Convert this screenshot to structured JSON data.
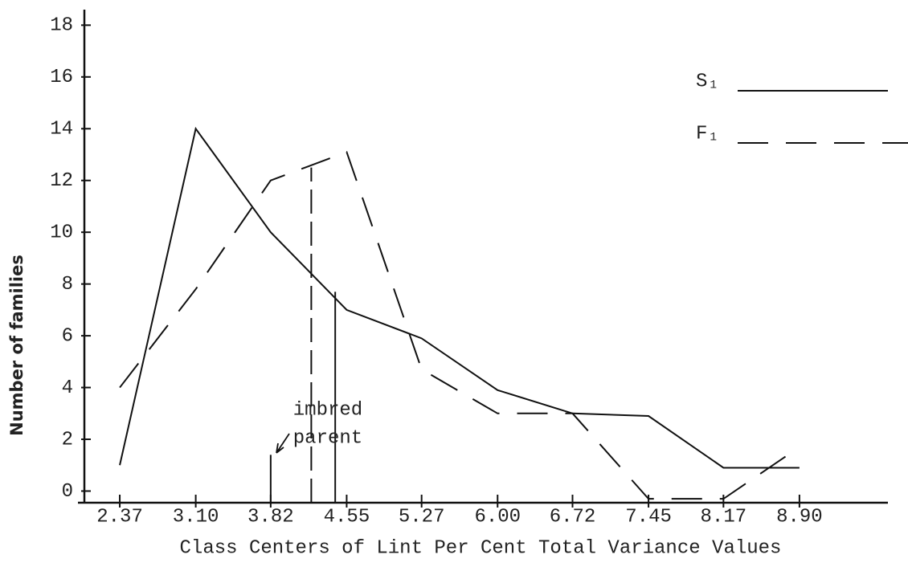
{
  "chart_data": {
    "type": "line",
    "x_label": "Class Centers of Lint Per Cent Total Variance Values",
    "y_label": "Number of families",
    "x": [
      2.37,
      3.1,
      3.82,
      4.55,
      5.27,
      6.0,
      6.72,
      7.45,
      8.17,
      8.9
    ],
    "series": [
      {
        "name": "S₁",
        "color": "#111111",
        "dash": "solid",
        "values": [
          1,
          14,
          10,
          7,
          5.9,
          3.9,
          3,
          2.9,
          0.9,
          0.9
        ]
      },
      {
        "name": "F₁",
        "color": "#111111",
        "dash": "dashed",
        "values": [
          4,
          7.8,
          12,
          13.1,
          4.7,
          3,
          3,
          -0.3,
          -0.3,
          1.7
        ]
      }
    ],
    "parent_lines": [
      {
        "x": 3.82,
        "height": 1.4,
        "dash": "solid"
      },
      {
        "x": 4.21,
        "height": 12.5,
        "dash": "dashed"
      },
      {
        "x": 4.44,
        "height": 7.7,
        "dash": "solid"
      }
    ],
    "annotation_lines": [
      "imbred",
      "parent"
    ],
    "xlim": [
      2.03,
      9.75
    ],
    "ylim": [
      -0.45,
      18.6
    ],
    "xticks": [
      2.37,
      {
        "value": 3.1,
        "label": "3.10"
      },
      3.82,
      4.55,
      5.27,
      {
        "value": 6,
        "label": "6.00"
      },
      6.72,
      7.45,
      8.17,
      {
        "value": 8.9,
        "label": "8.90"
      }
    ],
    "yticks": [
      0,
      2,
      4,
      6,
      8,
      10,
      12,
      14,
      16,
      18
    ],
    "legend": "upper right",
    "grid": false
  }
}
